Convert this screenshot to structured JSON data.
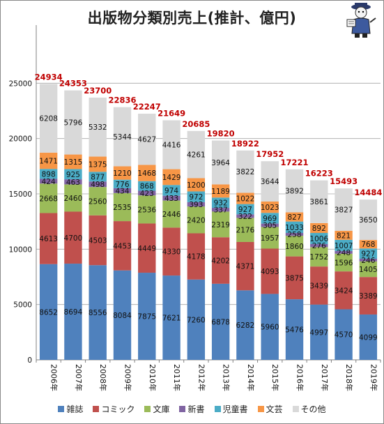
{
  "chart_data": {
    "type": "bar",
    "stacked": true,
    "title": "出版物分類別売上(推計、億円)",
    "categories": [
      "2006年",
      "2007年",
      "2008年",
      "2009年",
      "2010年",
      "2011年",
      "2012年",
      "2013年",
      "2014年",
      "2015年",
      "2016年",
      "2017年",
      "2018年",
      "2019年"
    ],
    "series": [
      {
        "name": "雑誌",
        "color": "#4f81bd",
        "values": [
          8652,
          8694,
          8556,
          8084,
          7875,
          7621,
          7260,
          6878,
          6282,
          5960,
          5476,
          4997,
          4570,
          4099
        ]
      },
      {
        "name": "コミック",
        "color": "#c0504d",
        "values": [
          4613,
          4700,
          4503,
          4453,
          4449,
          4330,
          4178,
          4202,
          4371,
          4093,
          3875,
          3439,
          3424,
          3389
        ]
      },
      {
        "name": "文庫",
        "color": "#9bbb59",
        "values": [
          2668,
          2460,
          2560,
          2535,
          2536,
          2446,
          2420,
          2319,
          2176,
          1957,
          1860,
          1752,
          1596,
          1405
        ]
      },
      {
        "name": "新書",
        "color": "#8064a2",
        "values": [
          424,
          463,
          498,
          434,
          423,
          433,
          393,
          337,
          322,
          305,
          258,
          276,
          248,
          246
        ]
      },
      {
        "name": "児童書",
        "color": "#4bacc6",
        "values": [
          898,
          925,
          877,
          776,
          868,
          974,
          972,
          932,
          927,
          969,
          1033,
          1006,
          1007,
          927
        ]
      },
      {
        "name": "文芸",
        "color": "#f79646",
        "values": [
          1471,
          1315,
          1375,
          1210,
          1468,
          1429,
          1200,
          1189,
          1022,
          1023,
          827,
          892,
          821,
          768
        ]
      },
      {
        "name": "その他",
        "color": "#d9d9d9",
        "values": [
          6208,
          5796,
          5332,
          5344,
          4627,
          4416,
          4261,
          3964,
          3822,
          3644,
          3892,
          3861,
          3827,
          3650
        ]
      }
    ],
    "totals": [
      24934,
      24353,
      23700,
      22836,
      22247,
      21649,
      20685,
      19820,
      18922,
      17952,
      17221,
      16223,
      15493,
      14484
    ],
    "ylim": [
      0,
      30000
    ],
    "yticks": [
      0,
      5000,
      10000,
      15000,
      20000,
      25000
    ],
    "grid": true,
    "legend_position": "bottom"
  },
  "icons": {
    "mascot": "mascot-icon"
  }
}
